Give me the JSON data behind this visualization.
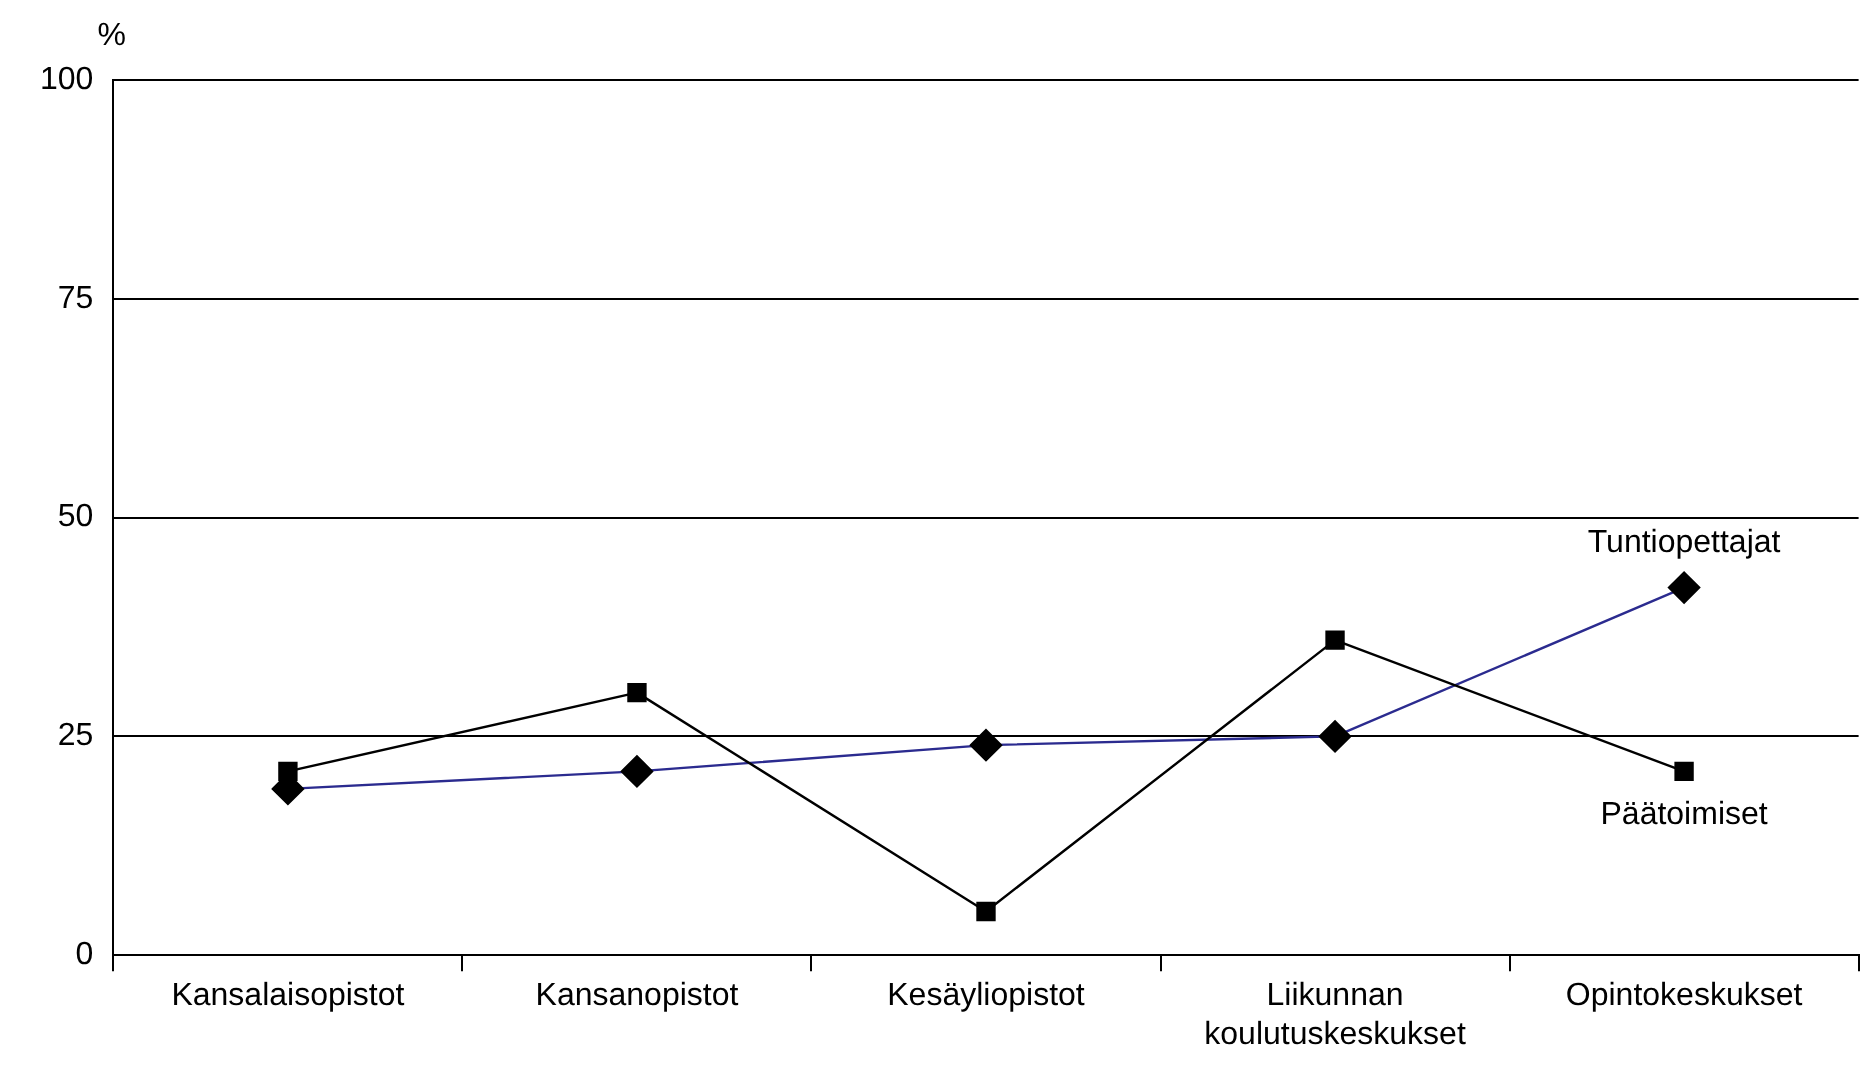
{
  "chart_data": {
    "type": "line",
    "ylabel": "%",
    "categories": [
      "Kansalaisopistot",
      "Kansanopistot",
      "Kesäyliopistot",
      "Liikunnan koulutuskeskukset",
      "Opintokeskukset"
    ],
    "series": [
      {
        "name": "Päätoimiset",
        "color": "#000000",
        "marker": "square",
        "values": [
          21,
          30,
          5,
          36,
          21
        ]
      },
      {
        "name": "Tuntiopettajat",
        "color": "#2b2b8f",
        "marker": "diamond",
        "values": [
          19,
          21,
          24,
          25,
          42
        ]
      }
    ],
    "ylim": [
      0,
      100
    ],
    "yticks": [
      0,
      25,
      50,
      75,
      100
    ],
    "grid": "y",
    "legend": false
  }
}
